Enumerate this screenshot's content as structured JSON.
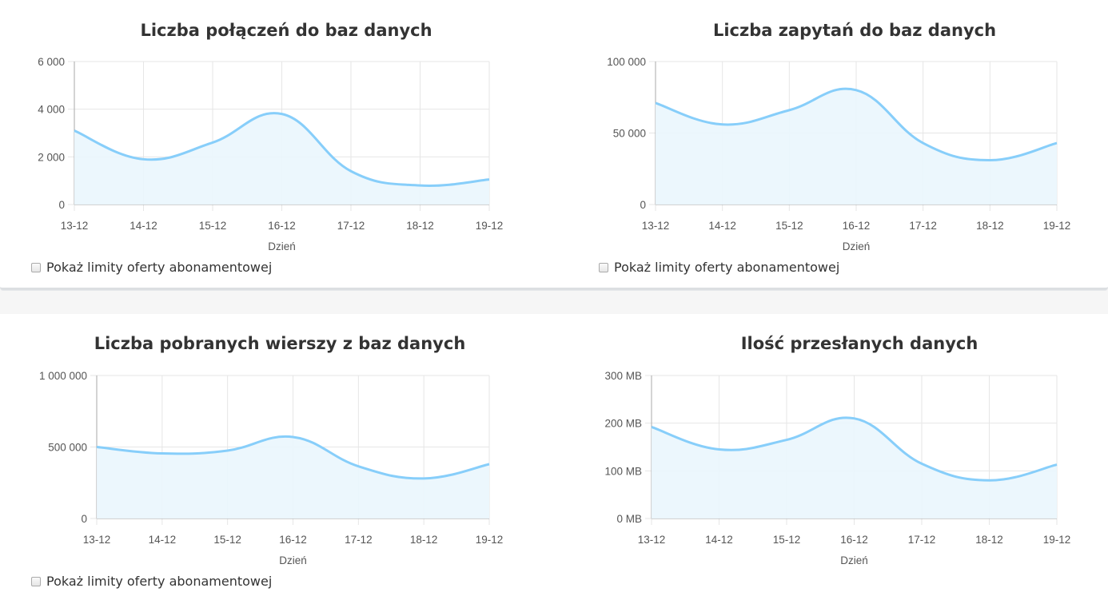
{
  "charts": [
    {
      "title": "Liczba połączeń do baz danych",
      "limit_label": "Pokaż limity oferty abonamentowej",
      "chart_data": {
        "type": "area",
        "categories": [
          "13-12",
          "14-12",
          "15-12",
          "16-12",
          "17-12",
          "18-12",
          "19-12"
        ],
        "series": [
          {
            "values": [
              3100,
              1900,
              2600,
              3800,
              1400,
              800,
              1050
            ]
          }
        ],
        "xlabel": "Dzień",
        "ylim": [
          0,
          6000
        ],
        "yticks": [
          0,
          2000,
          4000,
          6000
        ],
        "ytick_labels": [
          "0",
          "2 000",
          "4 000",
          "6 000"
        ],
        "grid": true
      }
    },
    {
      "title": "Liczba zapytań do baz danych",
      "limit_label": "Pokaż limity oferty abonamentowej",
      "chart_data": {
        "type": "area",
        "categories": [
          "13-12",
          "14-12",
          "15-12",
          "16-12",
          "17-12",
          "18-12",
          "19-12"
        ],
        "series": [
          {
            "values": [
              71000,
              56000,
              66000,
              80000,
              43000,
              31000,
              43000
            ]
          }
        ],
        "xlabel": "Dzień",
        "ylim": [
          0,
          100000
        ],
        "yticks": [
          0,
          50000,
          100000
        ],
        "ytick_labels": [
          "0",
          "50 000",
          "100 000"
        ],
        "grid": true
      }
    },
    {
      "title": "Liczba pobranych wierszy z baz danych",
      "limit_label": "Pokaż limity oferty abonamentowej",
      "chart_data": {
        "type": "area",
        "categories": [
          "13-12",
          "14-12",
          "15-12",
          "16-12",
          "17-12",
          "18-12",
          "19-12"
        ],
        "series": [
          {
            "values": [
              500000,
              455000,
              475000,
              570000,
              365000,
              280000,
              380000
            ]
          }
        ],
        "xlabel": "Dzień",
        "ylim": [
          0,
          1000000
        ],
        "yticks": [
          0,
          500000,
          1000000
        ],
        "ytick_labels": [
          "0",
          "500 000",
          "1 000 000"
        ],
        "grid": true
      }
    },
    {
      "title": "Ilość przesłanych danych",
      "limit_label": "",
      "chart_data": {
        "type": "area",
        "categories": [
          "13-12",
          "14-12",
          "15-12",
          "16-12",
          "17-12",
          "18-12",
          "19-12"
        ],
        "series": [
          {
            "values": [
              192,
              145,
              165,
              210,
              115,
              80,
              113
            ]
          }
        ],
        "xlabel": "Dzień",
        "ylim": [
          0,
          300
        ],
        "yticks": [
          0,
          100,
          200,
          300
        ],
        "ytick_labels": [
          "0 MB",
          "100 MB",
          "200 MB",
          "300 MB"
        ],
        "grid": true
      }
    }
  ],
  "colors": {
    "line": "#87cefa",
    "fill": "#eaf6fd",
    "grid": "#e6e6e6",
    "axis": "#aaaaaa"
  }
}
